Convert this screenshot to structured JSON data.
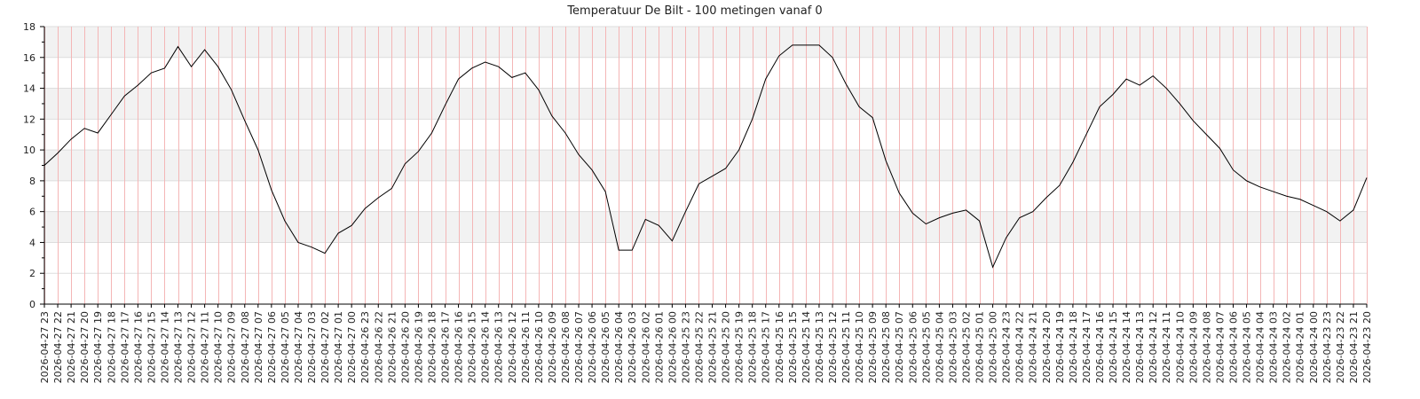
{
  "chart_data": {
    "type": "line",
    "title": "Temperatuur De Bilt - 100 metingen vanaf 0",
    "xlabel": "",
    "ylabel": "",
    "ylim": [
      0,
      18
    ],
    "yticks": [
      0,
      2,
      4,
      6,
      8,
      10,
      12,
      14,
      16,
      18
    ],
    "grid": true,
    "alternating_bands": true,
    "colors": {
      "line": "#000000",
      "vertical_grid": "#f4b6b6",
      "horizontal_grid": "#dddddd",
      "band": "#f2f2f2",
      "axis": "#000000"
    },
    "categories": [
      "2026-04-27 23",
      "2026-04-27 22",
      "2026-04-27 21",
      "2026-04-27 20",
      "2026-04-27 19",
      "2026-04-27 18",
      "2026-04-27 17",
      "2026-04-27 16",
      "2026-04-27 15",
      "2026-04-27 14",
      "2026-04-27 13",
      "2026-04-27 12",
      "2026-04-27 11",
      "2026-04-27 10",
      "2026-04-27 09",
      "2026-04-27 08",
      "2026-04-27 07",
      "2026-04-27 06",
      "2026-04-27 05",
      "2026-04-27 04",
      "2026-04-27 03",
      "2026-04-27 02",
      "2026-04-27 01",
      "2026-04-27 00",
      "2026-04-26 23",
      "2026-04-26 22",
      "2026-04-26 21",
      "2026-04-26 20",
      "2026-04-26 19",
      "2026-04-26 18",
      "2026-04-26 17",
      "2026-04-26 16",
      "2026-04-26 15",
      "2026-04-26 14",
      "2026-04-26 13",
      "2026-04-26 12",
      "2026-04-26 11",
      "2026-04-26 10",
      "2026-04-26 09",
      "2026-04-26 08",
      "2026-04-26 07",
      "2026-04-26 06",
      "2026-04-26 05",
      "2026-04-26 04",
      "2026-04-26 03",
      "2026-04-26 02",
      "2026-04-26 01",
      "2026-04-26 00",
      "2026-04-25 23",
      "2026-04-25 22",
      "2026-04-25 21",
      "2026-04-25 20",
      "2026-04-25 19",
      "2026-04-25 18",
      "2026-04-25 17",
      "2026-04-25 16",
      "2026-04-25 15",
      "2026-04-25 14",
      "2026-04-25 13",
      "2026-04-25 12",
      "2026-04-25 11",
      "2026-04-25 10",
      "2026-04-25 09",
      "2026-04-25 08",
      "2026-04-25 07",
      "2026-04-25 06",
      "2026-04-25 05",
      "2026-04-25 04",
      "2026-04-25 03",
      "2026-04-25 02",
      "2026-04-25 01",
      "2026-04-25 00",
      "2026-04-24 23",
      "2026-04-24 22",
      "2026-04-24 21",
      "2026-04-24 20",
      "2026-04-24 19",
      "2026-04-24 18",
      "2026-04-24 17",
      "2026-04-24 16",
      "2026-04-24 15",
      "2026-04-24 14",
      "2026-04-24 13",
      "2026-04-24 12",
      "2026-04-24 11",
      "2026-04-24 10",
      "2026-04-24 09",
      "2026-04-24 08",
      "2026-04-24 07",
      "2026-04-24 06",
      "2026-04-24 05",
      "2026-04-24 04",
      "2026-04-24 03",
      "2026-04-24 02",
      "2026-04-24 01",
      "2026-04-24 00",
      "2026-04-23 23",
      "2026-04-23 22",
      "2026-04-23 21",
      "2026-04-23 20"
    ],
    "series": [
      {
        "values": [
          9.0,
          9.8,
          10.7,
          11.4,
          11.1,
          12.3,
          13.5,
          14.2,
          15.0,
          15.3,
          16.7,
          15.4,
          16.5,
          15.4,
          13.9,
          11.9,
          10.0,
          7.4,
          5.4,
          4.0,
          3.7,
          3.3,
          4.6,
          5.1,
          6.2,
          6.9,
          7.5,
          9.1,
          9.9,
          11.1,
          12.9,
          14.6,
          15.3,
          15.7,
          15.4,
          14.7,
          15.0,
          13.9,
          12.2,
          11.1,
          9.7,
          8.7,
          7.3,
          3.5,
          3.5,
          5.5,
          5.1,
          4.1,
          6.0,
          7.8,
          8.3,
          8.8,
          10.0,
          12.0,
          14.6,
          16.1,
          16.8,
          16.8,
          16.8,
          16.0,
          14.3,
          12.8,
          12.1,
          9.3,
          7.2,
          5.9,
          5.2,
          5.6,
          5.9,
          6.1,
          5.4,
          2.4,
          4.3,
          5.6,
          6.0,
          6.9,
          7.7,
          9.2,
          11.0,
          12.8,
          13.6,
          14.6,
          14.2,
          14.8,
          14.0,
          13.0,
          11.9,
          11.0,
          10.1,
          8.7,
          8.0,
          7.6,
          7.3,
          7.0,
          6.8,
          6.4,
          6.0,
          5.4,
          6.1,
          8.2
        ]
      }
    ]
  }
}
